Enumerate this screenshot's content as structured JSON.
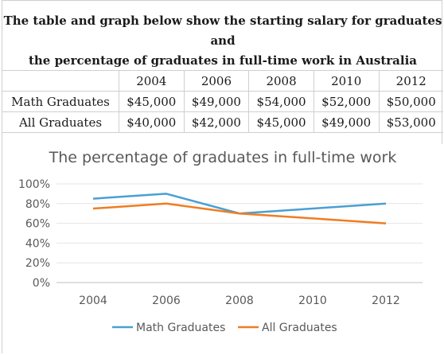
{
  "heading": {
    "line1": "The table and graph below show the starting salary for graduates and",
    "line2": "the percentage of graduates in full-time work in Australia"
  },
  "table": {
    "years": [
      "2004",
      "2006",
      "2008",
      "2010",
      "2012"
    ],
    "rows": [
      {
        "label": "Math Graduates",
        "values": [
          "$45,000",
          "$49,000",
          "$54,000",
          "$52,000",
          "$50,000"
        ]
      },
      {
        "label": "All Graduates",
        "values": [
          "$40,000",
          "$42,000",
          "$45,000",
          "$49,000",
          "$53,000"
        ]
      }
    ]
  },
  "chart_data": {
    "type": "line",
    "title": "The percentage of graduates in full-time work",
    "xlabel": "",
    "ylabel": "",
    "categories": [
      "2004",
      "2006",
      "2008",
      "2010",
      "2012"
    ],
    "ylim": [
      0,
      100
    ],
    "yticks": [
      "0%",
      "20%",
      "40%",
      "60%",
      "80%",
      "100%"
    ],
    "grid": true,
    "legend_position": "bottom",
    "series": [
      {
        "name": "Math Graduates",
        "color": "#4a9fd4",
        "values": [
          85,
          90,
          70,
          75,
          80
        ]
      },
      {
        "name": "All Graduates",
        "color": "#ef7d22",
        "values": [
          75,
          80,
          70,
          65,
          60
        ]
      }
    ]
  }
}
